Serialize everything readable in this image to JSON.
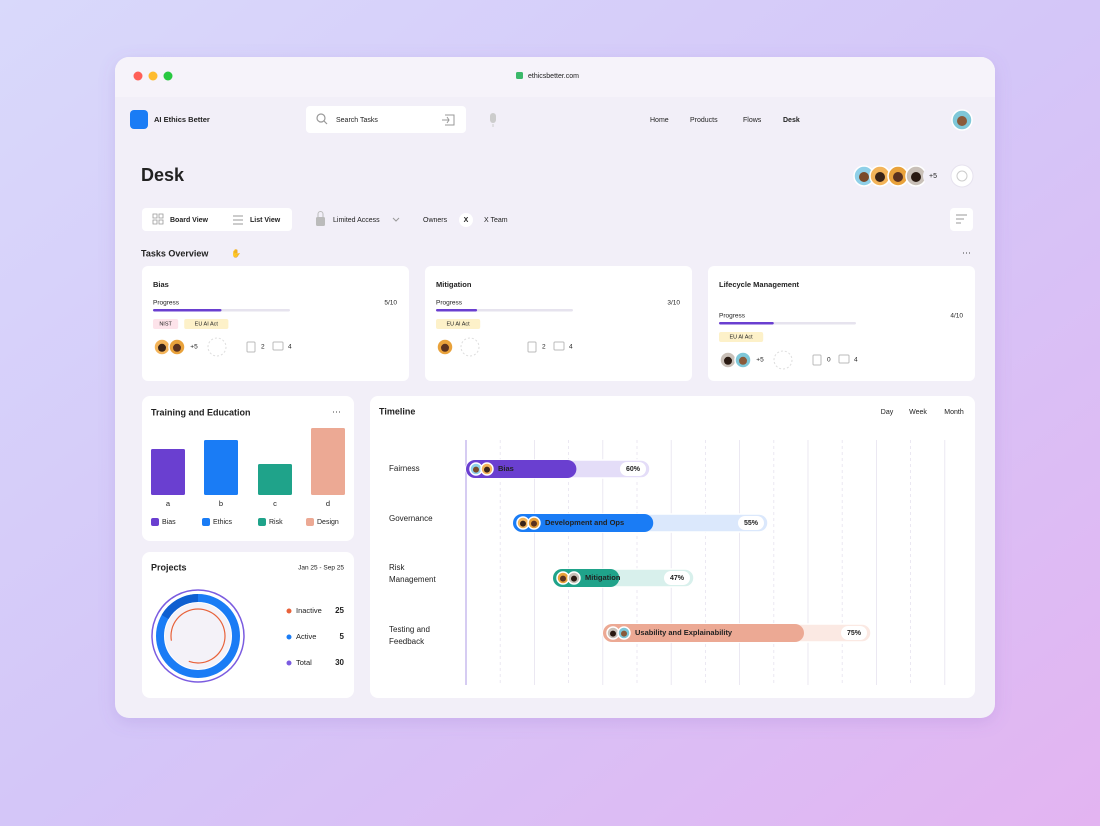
{
  "browser": {
    "url": "ethicsbetter.com"
  },
  "header": {
    "app_name": "AI Ethics Better",
    "search_placeholder": "Search Tasks",
    "nav": [
      "Home",
      "Products",
      "Flows",
      "Desk"
    ]
  },
  "page": {
    "title": "Desk",
    "team_more": "+5"
  },
  "toolbar": {
    "views": [
      "Board View",
      "List View"
    ],
    "access": "Limited Access",
    "owners_label": "Owners",
    "owner_chip": "X",
    "team": "X Team"
  },
  "tasks_overview": {
    "title": "Tasks Overview",
    "cards": [
      {
        "title": "Bias",
        "progress_label": "Progress",
        "progress": "5/10",
        "tags": [
          {
            "text": "NIST",
            "color": "#d4456a",
            "bg": "#fde3ea"
          },
          {
            "text": "EU AI Act",
            "color": "#b8860b",
            "bg": "#fdf1c9"
          }
        ],
        "more_members": "+5",
        "files": "2",
        "comments": "4"
      },
      {
        "title": "Mitigation",
        "progress_label": "Progress",
        "progress": "3/10",
        "tags": [
          {
            "text": "EU AI Act",
            "color": "#b8860b",
            "bg": "#fdf1c9"
          }
        ],
        "files": "2",
        "comments": "4"
      },
      {
        "title": "Lifecycle Management",
        "progress_label": "Progress",
        "progress": "4/10",
        "tags": [
          {
            "text": "EU AI Act",
            "color": "#b8860b",
            "bg": "#fdf1c9"
          }
        ],
        "more_members": "+5",
        "files": "0",
        "comments": "4"
      }
    ]
  },
  "chart_data": {
    "type": "bar",
    "title": "Training and Education",
    "categories": [
      "a",
      "b",
      "c",
      "d"
    ],
    "values": [
      46,
      55,
      31,
      67
    ],
    "colors": [
      "#6a3fd0",
      "#1a7cf5",
      "#1fa38a",
      "#eca994"
    ],
    "legend": [
      "Bias",
      "Ethics",
      "Risk",
      "Design"
    ],
    "ylim": [
      0,
      70
    ]
  },
  "projects": {
    "title": "Projects",
    "date_range": "Jan 25 - Sep 25",
    "items": [
      {
        "name": "Inactive",
        "value": 25,
        "color": "#e8623a"
      },
      {
        "name": "Active",
        "value": 5,
        "color": "#1a7cf5"
      },
      {
        "name": "Total",
        "value": 30,
        "color": "#7b5ce0"
      }
    ]
  },
  "timeline": {
    "title": "Timeline",
    "scales": [
      "Day",
      "Week",
      "Month"
    ],
    "rows": [
      {
        "label": [
          "Fairness"
        ],
        "task": "Bias",
        "progress": 60,
        "progress_label": "60%",
        "color": "#6a3fd0",
        "track": "#e4ddf8"
      },
      {
        "label": [
          "Governance"
        ],
        "task": "Development and Ops",
        "progress": 55,
        "progress_label": "55%",
        "color": "#1a7cf5",
        "track": "#dbe8fc"
      },
      {
        "label": [
          "Risk",
          "Management"
        ],
        "task": "Mitigation",
        "progress": 47,
        "progress_label": "47%",
        "color": "#1fa38a",
        "track": "#d8f0ec"
      },
      {
        "label": [
          "Testing and",
          "Feedback"
        ],
        "task": "Usability and Explainability",
        "progress": 75,
        "progress_label": "75%",
        "color": "#eca994",
        "track": "#fbe9e3"
      }
    ]
  }
}
